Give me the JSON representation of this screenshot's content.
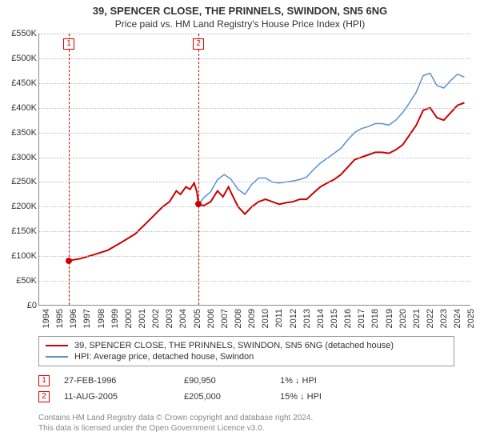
{
  "title": "39, SPENCER CLOSE, THE PRINNELS, SWINDON, SN5 6NG",
  "subtitle": "Price paid vs. HM Land Registry's House Price Index (HPI)",
  "chart": {
    "type": "line",
    "xlim": [
      1994,
      2025.5
    ],
    "ylim": [
      0,
      550000
    ],
    "ytick_step": 50000,
    "ytick_labels": [
      "£0",
      "£50K",
      "£100K",
      "£150K",
      "£200K",
      "£250K",
      "£300K",
      "£350K",
      "£400K",
      "£450K",
      "£500K",
      "£550K"
    ],
    "xticks": [
      1994,
      1995,
      1996,
      1997,
      1998,
      1999,
      2000,
      2001,
      2002,
      2003,
      2004,
      2005,
      2006,
      2007,
      2008,
      2009,
      2010,
      2011,
      2012,
      2013,
      2014,
      2015,
      2016,
      2017,
      2018,
      2019,
      2020,
      2021,
      2022,
      2023,
      2024,
      2025
    ],
    "background_color": "#ffffff",
    "grid_color": "#bbbbbb",
    "series": [
      {
        "name": "property",
        "color": "#cc0000",
        "width": 2,
        "points": [
          [
            1996.16,
            90950
          ],
          [
            1997,
            95000
          ],
          [
            1998,
            103000
          ],
          [
            1999,
            112000
          ],
          [
            2000,
            128000
          ],
          [
            2001,
            145000
          ],
          [
            2002,
            172000
          ],
          [
            2003,
            200000
          ],
          [
            2003.5,
            210000
          ],
          [
            2004,
            232000
          ],
          [
            2004.3,
            225000
          ],
          [
            2004.7,
            240000
          ],
          [
            2005,
            235000
          ],
          [
            2005.3,
            248000
          ],
          [
            2005.5,
            230000
          ],
          [
            2005.62,
            205000
          ],
          [
            2006,
            202000
          ],
          [
            2006.5,
            210000
          ],
          [
            2007,
            232000
          ],
          [
            2007.4,
            220000
          ],
          [
            2007.8,
            240000
          ],
          [
            2008,
            228000
          ],
          [
            2008.5,
            200000
          ],
          [
            2009,
            185000
          ],
          [
            2009.5,
            200000
          ],
          [
            2010,
            210000
          ],
          [
            2010.5,
            215000
          ],
          [
            2011,
            210000
          ],
          [
            2011.5,
            205000
          ],
          [
            2012,
            208000
          ],
          [
            2012.5,
            210000
          ],
          [
            2013,
            215000
          ],
          [
            2013.5,
            215000
          ],
          [
            2014,
            228000
          ],
          [
            2014.5,
            240000
          ],
          [
            2015,
            248000
          ],
          [
            2015.5,
            255000
          ],
          [
            2016,
            265000
          ],
          [
            2016.5,
            280000
          ],
          [
            2017,
            295000
          ],
          [
            2017.5,
            300000
          ],
          [
            2018,
            305000
          ],
          [
            2018.5,
            310000
          ],
          [
            2019,
            310000
          ],
          [
            2019.5,
            308000
          ],
          [
            2020,
            315000
          ],
          [
            2020.5,
            325000
          ],
          [
            2021,
            345000
          ],
          [
            2021.5,
            365000
          ],
          [
            2022,
            395000
          ],
          [
            2022.5,
            400000
          ],
          [
            2023,
            380000
          ],
          [
            2023.5,
            375000
          ],
          [
            2024,
            390000
          ],
          [
            2024.5,
            405000
          ],
          [
            2025,
            410000
          ]
        ]
      },
      {
        "name": "hpi",
        "color": "#5b8fd6",
        "width": 1.5,
        "points": [
          [
            2005.62,
            205000
          ],
          [
            2006,
            218000
          ],
          [
            2006.5,
            230000
          ],
          [
            2007,
            255000
          ],
          [
            2007.5,
            265000
          ],
          [
            2008,
            255000
          ],
          [
            2008.5,
            235000
          ],
          [
            2009,
            225000
          ],
          [
            2009.5,
            245000
          ],
          [
            2010,
            258000
          ],
          [
            2010.5,
            258000
          ],
          [
            2011,
            250000
          ],
          [
            2011.5,
            248000
          ],
          [
            2012,
            250000
          ],
          [
            2012.5,
            252000
          ],
          [
            2013,
            255000
          ],
          [
            2013.5,
            260000
          ],
          [
            2014,
            275000
          ],
          [
            2014.5,
            288000
          ],
          [
            2015,
            298000
          ],
          [
            2015.5,
            308000
          ],
          [
            2016,
            318000
          ],
          [
            2016.5,
            335000
          ],
          [
            2017,
            350000
          ],
          [
            2017.5,
            358000
          ],
          [
            2018,
            362000
          ],
          [
            2018.5,
            368000
          ],
          [
            2019,
            368000
          ],
          [
            2019.5,
            365000
          ],
          [
            2020,
            375000
          ],
          [
            2020.5,
            390000
          ],
          [
            2021,
            410000
          ],
          [
            2021.5,
            432000
          ],
          [
            2022,
            465000
          ],
          [
            2022.5,
            470000
          ],
          [
            2023,
            445000
          ],
          [
            2023.5,
            440000
          ],
          [
            2024,
            455000
          ],
          [
            2024.5,
            468000
          ],
          [
            2025,
            462000
          ]
        ]
      }
    ],
    "markers": [
      {
        "x": 1996.16,
        "y": 90950,
        "color": "#cc0000"
      },
      {
        "x": 2005.62,
        "y": 205000,
        "color": "#cc0000"
      }
    ],
    "events": [
      {
        "num": "1",
        "x": 1996.16,
        "date": "27-FEB-1996",
        "price": "£90,950",
        "pct": "1% ↓ HPI"
      },
      {
        "num": "2",
        "x": 2005.62,
        "date": "11-AUG-2005",
        "price": "£205,000",
        "pct": "15% ↓ HPI"
      }
    ]
  },
  "legend": {
    "items": [
      {
        "color": "#cc0000",
        "label": "39, SPENCER CLOSE, THE PRINNELS, SWINDON, SN5 6NG (detached house)"
      },
      {
        "color": "#5b8fd6",
        "label": "HPI: Average price, detached house, Swindon"
      }
    ]
  },
  "footer": {
    "line1": "Contains HM Land Registry data © Crown copyright and database right 2024.",
    "line2": "This data is licensed under the Open Government Licence v3.0."
  }
}
